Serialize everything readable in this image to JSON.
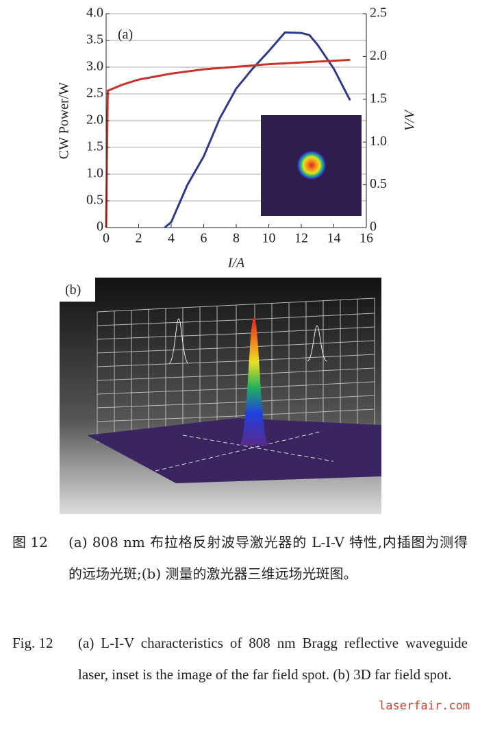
{
  "chart_data": {
    "type": "line",
    "annotation": "(a)",
    "xlabel": "I/A",
    "ylabel": "CW  Power/W",
    "y2label": "V/V",
    "xlim": [
      0,
      16
    ],
    "xticks": [
      0,
      2,
      4,
      6,
      8,
      10,
      12,
      14,
      16
    ],
    "ylim": [
      0,
      4
    ],
    "yticks": [
      0,
      0.5,
      {
        "value": 1,
        "label": "1.0"
      },
      1.5,
      {
        "value": 2,
        "label": "2.0"
      },
      2.5,
      {
        "value": 3,
        "label": "3.0"
      },
      3.5,
      {
        "value": 4,
        "label": "4.0"
      }
    ],
    "y2lim": [
      0,
      2.5
    ],
    "y2ticks": [
      0,
      0.5,
      {
        "value": 1,
        "label": "1.0"
      },
      1.5,
      {
        "value": 2,
        "label": "2.0"
      },
      2.5
    ],
    "grid": true,
    "series": [
      {
        "name": "CW Power",
        "color": "#2b3a8c",
        "axis": "y",
        "x": [
          3.6,
          4,
          5,
          6,
          7,
          8,
          9,
          10,
          11,
          12,
          12.5,
          13,
          14,
          15
        ],
        "values": [
          0,
          0.1,
          0.8,
          1.33,
          2.05,
          2.6,
          2.97,
          3.3,
          3.65,
          3.64,
          3.6,
          3.42,
          2.97,
          2.38
        ]
      },
      {
        "name": "Voltage",
        "color": "#c8322a",
        "axis": "y2",
        "x": [
          0,
          0.1,
          1,
          2,
          4,
          6,
          8,
          10,
          12,
          14,
          15
        ],
        "values": [
          0,
          1.6,
          1.67,
          1.73,
          1.8,
          1.85,
          1.88,
          1.91,
          1.93,
          1.95,
          1.96
        ]
      }
    ]
  },
  "panel_b_label": "(b)",
  "caption": {
    "cn_label": "图 12",
    "cn_text": "(a) 808 nm 布拉格反射波导激光器的 L-I-V 特性,内插图为测得的远场光斑;(b) 测量的激光器三维远场光斑图。",
    "en_label": "Fig. 12",
    "en_text": "(a) L-I-V characteristics of 808 nm Bragg reflective waveguide laser, inset is the image of the far field spot. (b) 3D far field spot."
  },
  "watermark": "laserfair.com"
}
